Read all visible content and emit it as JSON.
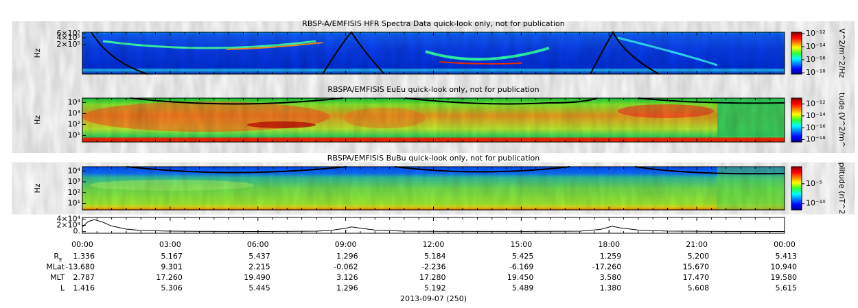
{
  "chart_data": [
    {
      "type": "spectrogram",
      "title": "RBSP-A/EMFISIS  HFR Spectra Data quick-look only, not for publication",
      "ylabel": "Hz",
      "log_y": true,
      "ylim": [
        10000,
        700000
      ],
      "yticks": [
        {
          "value": 200000,
          "label": "2×10⁵"
        },
        {
          "value": 400000,
          "label": "4×10⁵"
        },
        {
          "value": 600000,
          "label": "6×10⁵"
        }
      ],
      "colorbar": {
        "label": "V^2/m^2/Hz",
        "log": true,
        "zlim": [
          6.3e-19,
          1.6e-12
        ],
        "ticks": [
          {
            "value": 1e-12,
            "label": "10⁻¹²"
          },
          {
            "value": 1e-14,
            "label": "10⁻¹⁴"
          },
          {
            "value": 1e-16,
            "label": "10⁻¹⁶"
          },
          {
            "value": 1e-18,
            "label": "10⁻¹⁸"
          }
        ]
      }
    },
    {
      "type": "spectrogram",
      "title": "RBSPA/EMFISIS  EuEu quick-look only, not for publication",
      "ylabel": "Hz",
      "log_y": true,
      "ylim": [
        2.5,
        25000
      ],
      "yticks": [
        {
          "value": 10,
          "label": "10¹"
        },
        {
          "value": 100,
          "label": "10²"
        },
        {
          "value": 1000,
          "label": "10³"
        },
        {
          "value": 10000,
          "label": "10⁴"
        }
      ],
      "colorbar": {
        "label": "tude (V^2/m^",
        "log": true,
        "zlim": [
          4e-19,
          1e-11
        ],
        "ticks": [
          {
            "value": 1e-12,
            "label": "10⁻¹²"
          },
          {
            "value": 1e-14,
            "label": "10⁻¹⁴"
          },
          {
            "value": 1e-16,
            "label": "10⁻¹⁶"
          },
          {
            "value": 1e-18,
            "label": "10⁻¹⁸"
          }
        ]
      }
    },
    {
      "type": "spectrogram",
      "title": "RBSPA/EMFISIS  BuBu quick-look only, not for publication",
      "ylabel": "Hz",
      "log_y": true,
      "ylim": [
        2.5,
        25000
      ],
      "yticks": [
        {
          "value": 10,
          "label": "10¹"
        },
        {
          "value": 100,
          "label": "10²"
        },
        {
          "value": 1000,
          "label": "10³"
        },
        {
          "value": 10000,
          "label": "10⁴"
        }
      ],
      "colorbar": {
        "label": "plitude (nT^2",
        "log": true,
        "zlim": [
          2.5e-12,
          0.2
        ],
        "ticks": [
          {
            "value": 1e-05,
            "label": "10⁻⁵"
          },
          {
            "value": 1e-10,
            "label": "10⁻¹⁰"
          }
        ]
      }
    },
    {
      "type": "line",
      "color": "#000000",
      "x": [
        0,
        0.2,
        0.4,
        0.7,
        1,
        1.5,
        2,
        3,
        4,
        6,
        8,
        8.5,
        9,
        9.2,
        9.5,
        10,
        11,
        12,
        15,
        17,
        17.7,
        18.1,
        18.4,
        19,
        20,
        22,
        24
      ],
      "values": [
        15000,
        32000,
        38000,
        30000,
        18000,
        8000,
        4000,
        1500,
        800,
        500,
        1500,
        4000,
        11000,
        15000,
        11000,
        5000,
        1500,
        800,
        600,
        1500,
        7000,
        17000,
        12000,
        5000,
        1800,
        700,
        500
      ],
      "ylim": [
        -5000,
        45000
      ],
      "yticks": [
        {
          "value": 0,
          "label": "0."
        },
        {
          "value": 20000,
          "label": "2×10⁴"
        },
        {
          "value": 40000,
          "label": "4×10⁴"
        }
      ],
      "xlim": [
        0,
        24
      ],
      "xticks": [
        {
          "value": 0,
          "label": "00:00"
        },
        {
          "value": 3,
          "label": "03:00"
        },
        {
          "value": 6,
          "label": "06:00"
        },
        {
          "value": 9,
          "label": "09:00"
        },
        {
          "value": 12,
          "label": "12:00"
        },
        {
          "value": 15,
          "label": "15:00"
        },
        {
          "value": 18,
          "label": "18:00"
        },
        {
          "value": 21,
          "label": "21:00"
        },
        {
          "value": 24,
          "label": "00:00"
        }
      ],
      "xlabel": "2013-09-07 (250)"
    }
  ],
  "ephemeris": {
    "rows": [
      {
        "label": "R",
        "sub": "E",
        "values": [
          "1.336",
          "5.167",
          "5.437",
          "1.296",
          "5.184",
          "5.425",
          "1.259",
          "5.200",
          "5.413"
        ]
      },
      {
        "label": "MLat",
        "values": [
          "-13.680",
          "9.301",
          "2.215",
          "-0.062",
          "-2.236",
          "-6.169",
          "-17.260",
          "15.670",
          "10.940"
        ]
      },
      {
        "label": "MLT",
        "values": [
          "2.787",
          "17.260",
          "19.490",
          "3.126",
          "17.280",
          "19.450",
          "3.580",
          "17.470",
          "19.580"
        ]
      },
      {
        "label": "L",
        "values": [
          "1.416",
          "5.306",
          "5.445",
          "1.296",
          "5.192",
          "5.489",
          "1.380",
          "5.608",
          "5.615"
        ]
      }
    ]
  }
}
